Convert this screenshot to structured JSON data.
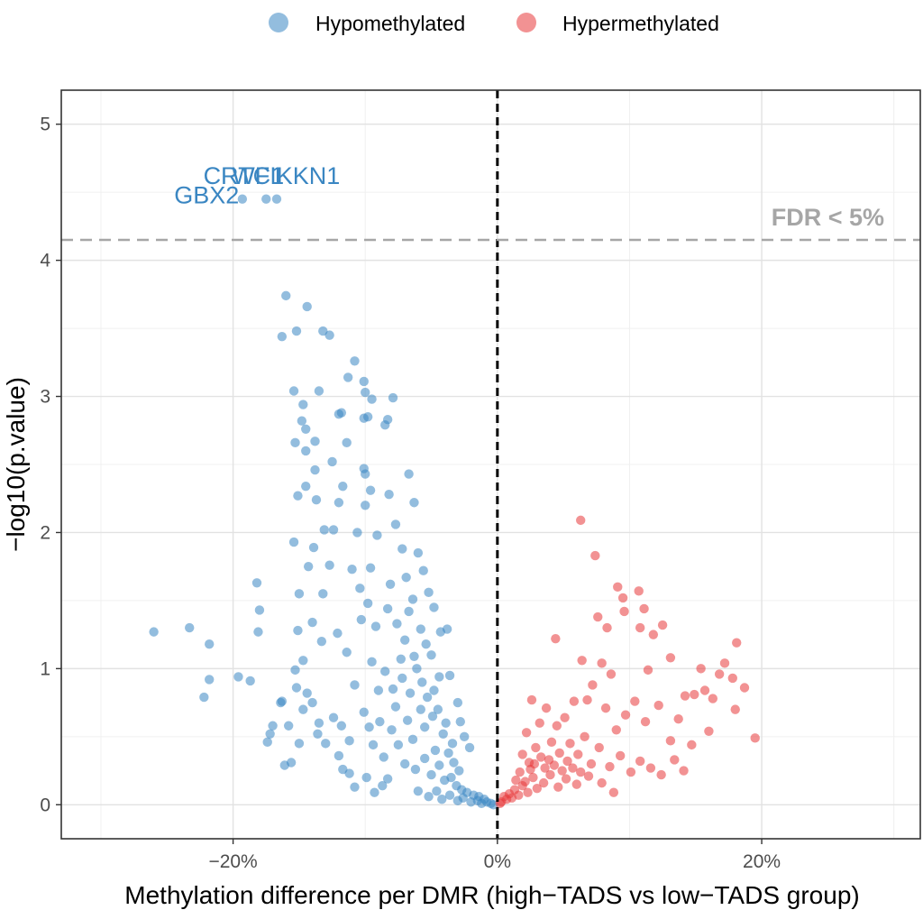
{
  "chart_data": {
    "type": "scatter",
    "title": "",
    "xlabel": "Methylation difference per DMR (high−TADS vs low−TADS group)",
    "ylabel": "−log10(p.value)",
    "xlim": [
      -0.33,
      0.32
    ],
    "ylim": [
      -0.25,
      5.25
    ],
    "x_ticks": [
      -0.2,
      0,
      0.2
    ],
    "x_tick_labels": [
      "−20%",
      "0%",
      "20%"
    ],
    "y_ticks": [
      0,
      1,
      2,
      3,
      4,
      5
    ],
    "y_tick_labels": [
      "0",
      "1",
      "2",
      "3",
      "4",
      "5"
    ],
    "grid": true,
    "legend_position": "top",
    "vline": {
      "x": 0,
      "style": "dashed",
      "color": "#000000"
    },
    "hline": {
      "y": 4.15,
      "style": "dashed",
      "color": "#a6a6a6",
      "label": "FDR < 5%"
    },
    "series": [
      {
        "name": "Hypomethylated",
        "color": "#3a86c2",
        "points": [
          [
            -0.26,
            1.27
          ],
          [
            -0.233,
            1.3
          ],
          [
            -0.218,
            1.18
          ],
          [
            -0.218,
            0.92
          ],
          [
            -0.222,
            0.79
          ],
          [
            -0.196,
            0.94
          ],
          [
            -0.187,
            0.91
          ],
          [
            -0.182,
            1.63
          ],
          [
            -0.18,
            1.43
          ],
          [
            -0.181,
            1.27
          ],
          [
            -0.17,
            0.58
          ],
          [
            -0.172,
            0.52
          ],
          [
            -0.174,
            0.46
          ],
          [
            -0.163,
            0.76
          ],
          [
            -0.164,
            0.75
          ],
          [
            -0.158,
            0.58
          ],
          [
            -0.161,
            0.29
          ],
          [
            -0.156,
            0.31
          ],
          [
            -0.152,
            0.86
          ],
          [
            -0.15,
            0.45
          ],
          [
            -0.16,
            3.74
          ],
          [
            -0.152,
            3.48
          ],
          [
            -0.163,
            3.44
          ],
          [
            -0.144,
            3.66
          ],
          [
            -0.132,
            3.48
          ],
          [
            -0.127,
            3.45
          ],
          [
            -0.154,
            3.04
          ],
          [
            -0.135,
            3.04
          ],
          [
            -0.147,
            2.94
          ],
          [
            -0.148,
            2.82
          ],
          [
            -0.145,
            2.76
          ],
          [
            -0.153,
            2.66
          ],
          [
            -0.138,
            2.67
          ],
          [
            -0.145,
            2.6
          ],
          [
            -0.108,
            3.26
          ],
          [
            -0.113,
            3.14
          ],
          [
            -0.101,
            3.11
          ],
          [
            -0.1,
            3.03
          ],
          [
            -0.095,
            2.98
          ],
          [
            -0.079,
            2.99
          ],
          [
            -0.118,
            2.88
          ],
          [
            -0.12,
            2.87
          ],
          [
            -0.098,
            2.85
          ],
          [
            -0.101,
            2.84
          ],
          [
            -0.083,
            2.83
          ],
          [
            -0.085,
            2.79
          ],
          [
            -0.114,
            2.66
          ],
          [
            -0.138,
            2.46
          ],
          [
            -0.125,
            2.52
          ],
          [
            -0.101,
            2.47
          ],
          [
            -0.1,
            2.43
          ],
          [
            -0.067,
            2.43
          ],
          [
            -0.145,
            2.34
          ],
          [
            -0.137,
            2.24
          ],
          [
            -0.151,
            2.27
          ],
          [
            -0.117,
            2.34
          ],
          [
            -0.096,
            2.31
          ],
          [
            -0.082,
            2.28
          ],
          [
            -0.12,
            2.22
          ],
          [
            -0.1,
            2.2
          ],
          [
            -0.063,
            2.22
          ],
          [
            -0.154,
            1.93
          ],
          [
            -0.131,
            2.02
          ],
          [
            -0.124,
            2.02
          ],
          [
            -0.139,
            1.89
          ],
          [
            -0.127,
            1.76
          ],
          [
            -0.143,
            1.75
          ],
          [
            -0.15,
            1.55
          ],
          [
            -0.132,
            1.55
          ],
          [
            -0.14,
            1.34
          ],
          [
            -0.133,
            1.2
          ],
          [
            -0.151,
            1.28
          ],
          [
            -0.147,
            1.06
          ],
          [
            -0.153,
            0.99
          ],
          [
            -0.147,
            0.7
          ],
          [
            -0.144,
            0.82
          ],
          [
            -0.14,
            0.75
          ],
          [
            -0.135,
            0.6
          ],
          [
            -0.136,
            0.52
          ],
          [
            -0.13,
            0.45
          ],
          [
            -0.12,
            0.36
          ],
          [
            -0.117,
            0.26
          ],
          [
            -0.112,
            0.23
          ],
          [
            -0.108,
            0.13
          ],
          [
            -0.099,
            0.2
          ],
          [
            -0.093,
            0.09
          ],
          [
            -0.087,
            0.14
          ],
          [
            -0.083,
            0.19
          ],
          [
            -0.09,
            0.84
          ],
          [
            -0.095,
            1.05
          ],
          [
            -0.11,
            1.73
          ],
          [
            -0.104,
            1.59
          ],
          [
            -0.096,
            1.74
          ],
          [
            -0.106,
            2.0
          ],
          [
            -0.091,
            1.98
          ],
          [
            -0.077,
            2.06
          ],
          [
            -0.072,
            1.88
          ],
          [
            -0.069,
            1.67
          ],
          [
            -0.083,
            1.44
          ],
          [
            -0.092,
            1.31
          ],
          [
            -0.07,
            1.21
          ],
          [
            -0.073,
            1.07
          ],
          [
            -0.064,
            1.51
          ],
          [
            -0.06,
            1.85
          ],
          [
            -0.052,
            1.56
          ],
          [
            -0.043,
            1.27
          ],
          [
            -0.05,
            1.1
          ],
          [
            -0.044,
            0.94
          ],
          [
            -0.038,
            1.29
          ],
          [
            -0.036,
            0.95
          ],
          [
            -0.03,
            0.75
          ],
          [
            -0.028,
            0.61
          ],
          [
            -0.025,
            0.5
          ],
          [
            -0.021,
            0.42
          ],
          [
            -0.06,
            0.1
          ],
          [
            -0.052,
            0.06
          ],
          [
            -0.046,
            0.1
          ],
          [
            -0.042,
            0.04
          ],
          [
            -0.036,
            0.07
          ],
          [
            -0.03,
            0.03
          ],
          [
            -0.026,
            0.05
          ],
          [
            -0.02,
            0.02
          ],
          [
            -0.015,
            0.03
          ],
          [
            -0.012,
            0.01
          ],
          [
            -0.008,
            0.02
          ],
          [
            -0.005,
            0.01
          ],
          [
            -0.003,
            0.0
          ],
          [
            -0.07,
            0.3
          ],
          [
            -0.062,
            0.26
          ],
          [
            -0.055,
            0.34
          ],
          [
            -0.05,
            0.22
          ],
          [
            -0.044,
            0.29
          ],
          [
            -0.04,
            0.18
          ],
          [
            -0.035,
            0.2
          ],
          [
            -0.031,
            0.14
          ],
          [
            -0.027,
            0.11
          ],
          [
            -0.023,
            0.09
          ],
          [
            -0.018,
            0.07
          ],
          [
            -0.014,
            0.06
          ],
          [
            -0.01,
            0.04
          ],
          [
            -0.08,
            0.55
          ],
          [
            -0.075,
            0.44
          ],
          [
            -0.068,
            0.62
          ],
          [
            -0.064,
            0.48
          ],
          [
            -0.058,
            0.7
          ],
          [
            -0.055,
            0.57
          ],
          [
            -0.049,
            0.65
          ],
          [
            -0.047,
            0.4
          ],
          [
            -0.041,
            0.52
          ],
          [
            -0.037,
            0.38
          ],
          [
            -0.033,
            0.31
          ],
          [
            -0.029,
            0.25
          ],
          [
            -0.034,
            0.45
          ],
          [
            -0.085,
            0.98
          ],
          [
            -0.079,
            0.85
          ],
          [
            -0.077,
            0.72
          ],
          [
            -0.072,
            0.93
          ],
          [
            -0.066,
            0.82
          ],
          [
            -0.061,
            1.0
          ],
          [
            -0.057,
            0.9
          ],
          [
            -0.053,
            0.79
          ],
          [
            -0.048,
            0.84
          ],
          [
            -0.045,
            0.7
          ],
          [
            -0.039,
            0.6
          ],
          [
            -0.101,
            0.68
          ],
          [
            -0.097,
            0.57
          ],
          [
            -0.094,
            0.44
          ],
          [
            -0.089,
            0.61
          ],
          [
            -0.086,
            0.35
          ],
          [
            -0.112,
            0.47
          ],
          [
            -0.118,
            0.58
          ],
          [
            -0.124,
            0.64
          ],
          [
            -0.108,
            0.88
          ],
          [
            -0.114,
            1.12
          ],
          [
            -0.121,
            1.26
          ],
          [
            -0.103,
            1.36
          ],
          [
            -0.098,
            1.48
          ],
          [
            -0.081,
            1.62
          ],
          [
            -0.076,
            1.33
          ],
          [
            -0.067,
            1.42
          ],
          [
            -0.058,
            1.29
          ],
          [
            -0.054,
            1.18
          ],
          [
            -0.056,
            1.72
          ],
          [
            -0.048,
            1.45
          ],
          [
            -0.063,
            1.09
          ]
        ],
        "labels": [
          {
            "text": "CRTC1",
            "x": -0.192,
            "y": 4.44
          },
          {
            "text": "GBX2",
            "x": -0.22,
            "y": 4.3
          },
          {
            "text": "WFIKKN1",
            "x": -0.16,
            "y": 4.44
          }
        ],
        "label_points": [
          [
            -0.193,
            4.45
          ],
          [
            -0.175,
            4.45
          ],
          [
            -0.167,
            4.45
          ]
        ]
      },
      {
        "name": "Hypermethylated",
        "color": "#e8393a",
        "points": [
          [
            0.063,
            2.09
          ],
          [
            0.074,
            1.83
          ],
          [
            0.091,
            1.6
          ],
          [
            0.095,
            1.52
          ],
          [
            0.107,
            1.57
          ],
          [
            0.096,
            1.42
          ],
          [
            0.111,
            1.44
          ],
          [
            0.108,
            1.3
          ],
          [
            0.125,
            1.32
          ],
          [
            0.083,
            1.3
          ],
          [
            0.076,
            1.38
          ],
          [
            0.044,
            1.22
          ],
          [
            0.064,
            1.06
          ],
          [
            0.079,
            1.04
          ],
          [
            0.086,
            0.96
          ],
          [
            0.114,
            0.99
          ],
          [
            0.118,
            1.25
          ],
          [
            0.131,
            1.08
          ],
          [
            0.154,
            1.0
          ],
          [
            0.168,
            0.96
          ],
          [
            0.157,
            0.84
          ],
          [
            0.149,
            0.81
          ],
          [
            0.163,
            0.78
          ],
          [
            0.172,
            1.04
          ],
          [
            0.181,
            1.19
          ],
          [
            0.178,
            0.93
          ],
          [
            0.187,
            0.86
          ],
          [
            0.18,
            0.7
          ],
          [
            0.195,
            0.49
          ],
          [
            0.16,
            0.54
          ],
          [
            0.142,
            0.8
          ],
          [
            0.137,
            0.63
          ],
          [
            0.131,
            0.47
          ],
          [
            0.147,
            0.44
          ],
          [
            0.122,
            0.73
          ],
          [
            0.112,
            0.61
          ],
          [
            0.104,
            0.76
          ],
          [
            0.097,
            0.66
          ],
          [
            0.09,
            0.55
          ],
          [
            0.082,
            0.71
          ],
          [
            0.072,
            0.88
          ],
          [
            0.068,
            0.77
          ],
          [
            0.058,
            0.76
          ],
          [
            0.051,
            0.64
          ],
          [
            0.045,
            0.58
          ],
          [
            0.037,
            0.71
          ],
          [
            0.032,
            0.6
          ],
          [
            0.026,
            0.77
          ],
          [
            0.022,
            0.53
          ],
          [
            0.029,
            0.42
          ],
          [
            0.019,
            0.37
          ],
          [
            0.024,
            0.31
          ],
          [
            0.033,
            0.35
          ],
          [
            0.041,
            0.46
          ],
          [
            0.047,
            0.38
          ],
          [
            0.055,
            0.45
          ],
          [
            0.061,
            0.37
          ],
          [
            0.066,
            0.5
          ],
          [
            0.071,
            0.3
          ],
          [
            0.077,
            0.42
          ],
          [
            0.085,
            0.28
          ],
          [
            0.093,
            0.36
          ],
          [
            0.101,
            0.24
          ],
          [
            0.108,
            0.32
          ],
          [
            0.116,
            0.27
          ],
          [
            0.124,
            0.22
          ],
          [
            0.134,
            0.33
          ],
          [
            0.141,
            0.25
          ],
          [
            0.088,
            0.09
          ],
          [
            0.079,
            0.16
          ],
          [
            0.069,
            0.21
          ],
          [
            0.06,
            0.15
          ],
          [
            0.052,
            0.19
          ],
          [
            0.046,
            0.13
          ],
          [
            0.04,
            0.22
          ],
          [
            0.035,
            0.16
          ],
          [
            0.03,
            0.12
          ],
          [
            0.027,
            0.2
          ],
          [
            0.023,
            0.09
          ],
          [
            0.019,
            0.14
          ],
          [
            0.016,
            0.07
          ],
          [
            0.013,
            0.11
          ],
          [
            0.011,
            0.05
          ],
          [
            0.009,
            0.08
          ],
          [
            0.007,
            0.04
          ],
          [
            0.005,
            0.06
          ],
          [
            0.003,
            0.02
          ],
          [
            0.002,
            0.01
          ],
          [
            0.014,
            0.18
          ],
          [
            0.017,
            0.24
          ],
          [
            0.021,
            0.17
          ],
          [
            0.025,
            0.26
          ],
          [
            0.028,
            0.3
          ],
          [
            0.036,
            0.27
          ],
          [
            0.039,
            0.33
          ],
          [
            0.043,
            0.29
          ],
          [
            0.049,
            0.25
          ],
          [
            0.053,
            0.32
          ],
          [
            0.057,
            0.27
          ],
          [
            0.063,
            0.24
          ]
        ]
      }
    ]
  }
}
